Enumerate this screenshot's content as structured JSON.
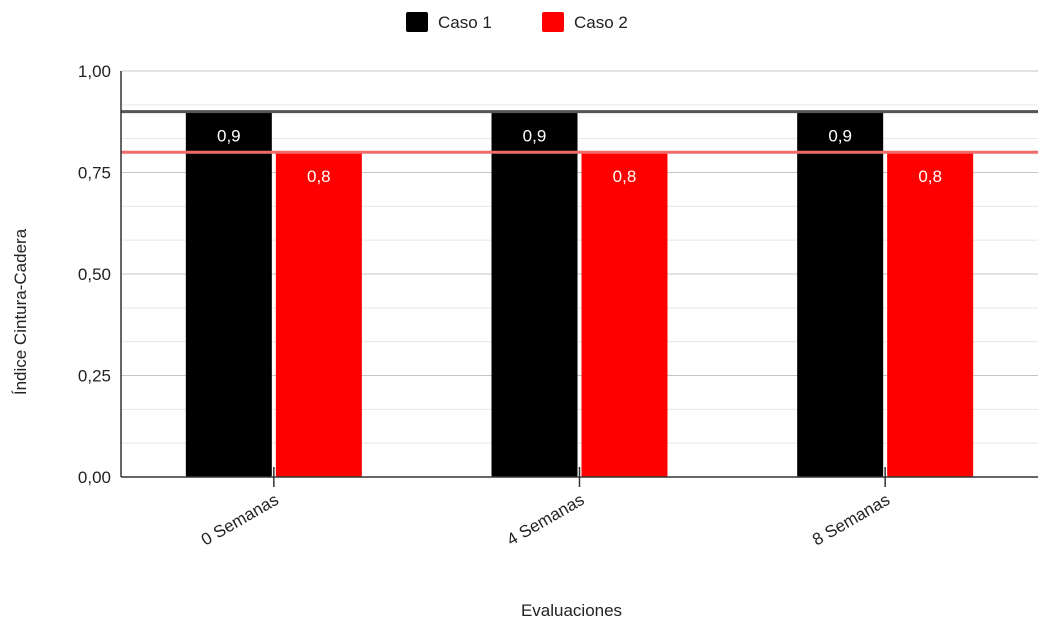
{
  "chart_data": {
    "type": "bar",
    "title": "",
    "xlabel": "Evaluaciones",
    "ylabel": "Índice Cintura-Cadera",
    "categories": [
      "0 Semanas",
      "4 Semanas",
      "8 Semanas"
    ],
    "series": [
      {
        "name": "Caso 1",
        "color": "#000000",
        "values": [
          0.9,
          0.9,
          0.9
        ],
        "labels": [
          "0,9",
          "0,9",
          "0,9"
        ]
      },
      {
        "name": "Caso 2",
        "color": "#ff0000",
        "values": [
          0.8,
          0.8,
          0.8
        ],
        "labels": [
          "0,8",
          "0,8",
          "0,8"
        ]
      }
    ],
    "reference_lines": [
      {
        "value": 0.9,
        "color": "#555555"
      },
      {
        "value": 0.8,
        "color": "#f06b6b"
      }
    ],
    "ylim": [
      0,
      1
    ],
    "yticks": [
      0,
      0.25,
      0.5,
      0.75,
      1
    ],
    "ytick_labels": [
      "0,00",
      "0,25",
      "0,50",
      "0,75",
      "1,00"
    ],
    "minor_grid": true,
    "grid": true,
    "legend_position": "top-center"
  }
}
